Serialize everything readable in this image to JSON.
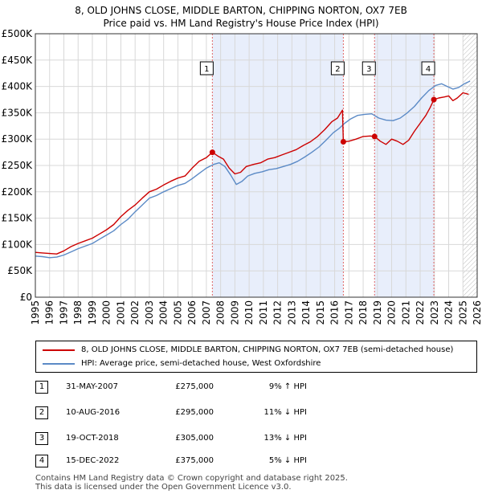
{
  "chart_data": {
    "type": "line",
    "title": "8, OLD JOHNS CLOSE, MIDDLE BARTON, CHIPPING NORTON, OX7 7EB",
    "subtitle": "Price paid vs. HM Land Registry's House Price Index (HPI)",
    "xlim": [
      1995,
      2026
    ],
    "ylim": [
      0,
      500000
    ],
    "x_ticks": [
      1995,
      1996,
      1997,
      1998,
      1999,
      2000,
      2001,
      2002,
      2003,
      2004,
      2005,
      2006,
      2007,
      2008,
      2009,
      2010,
      2011,
      2012,
      2013,
      2014,
      2015,
      2016,
      2017,
      2018,
      2019,
      2020,
      2021,
      2022,
      2023,
      2024,
      2025,
      2026
    ],
    "y_ticks": [
      0,
      50000,
      100000,
      150000,
      200000,
      250000,
      300000,
      350000,
      400000,
      450000,
      500000
    ],
    "y_tick_labels": [
      "£0",
      "£50K",
      "£100K",
      "£150K",
      "£200K",
      "£250K",
      "£300K",
      "£350K",
      "£400K",
      "£450K",
      "£500K"
    ],
    "grid": true,
    "forecast_start": 2025.0,
    "colors": {
      "property": "#cc0000",
      "hpi": "#5b8ac6",
      "shade": "#e8eefb",
      "marker_line": "#e06666"
    },
    "series": [
      {
        "name": "8, OLD JOHNS CLOSE, MIDDLE BARTON, CHIPPING NORTON, OX7 7EB (semi-detached house)",
        "x": [
          1995,
          1995.5,
          1996,
          1996.5,
          1997,
          1997.5,
          1998,
          1998.5,
          1999,
          1999.5,
          2000,
          2000.5,
          2001,
          2001.5,
          2002,
          2002.5,
          2003,
          2003.5,
          2004,
          2004.5,
          2005,
          2005.5,
          2006,
          2006.5,
          2007,
          2007.42,
          2007.8,
          2008.2,
          2008.6,
          2009,
          2009.4,
          2009.8,
          2010.3,
          2010.8,
          2011.3,
          2011.8,
          2012.3,
          2012.8,
          2013.3,
          2013.8,
          2014.3,
          2014.8,
          2015.3,
          2015.8,
          2016.2,
          2016.55,
          2016.61,
          2017,
          2017.5,
          2018,
          2018.5,
          2018.8,
          2019.2,
          2019.6,
          2020,
          2020.4,
          2020.8,
          2021.2,
          2021.6,
          2022,
          2022.4,
          2022.7,
          2022.96,
          2023.3,
          2023.7,
          2024,
          2024.3,
          2024.6,
          2025,
          2025.4
        ],
        "values": [
          85000,
          84000,
          83000,
          82000,
          88000,
          96000,
          102000,
          107000,
          112000,
          120000,
          128000,
          138000,
          153000,
          165000,
          175000,
          188000,
          200000,
          205000,
          213000,
          220000,
          226000,
          230000,
          245000,
          258000,
          265000,
          275000,
          268000,
          262000,
          245000,
          234000,
          237000,
          248000,
          252000,
          255000,
          262000,
          265000,
          270000,
          275000,
          280000,
          288000,
          295000,
          305000,
          318000,
          333000,
          340000,
          355000,
          295000,
          296000,
          300000,
          305000,
          306000,
          305000,
          296000,
          290000,
          300000,
          296000,
          290000,
          298000,
          315000,
          330000,
          345000,
          360000,
          375000,
          378000,
          380000,
          382000,
          373000,
          378000,
          388000,
          385000
        ]
      },
      {
        "name": "HPI: Average price, semi-detached house, West Oxfordshire",
        "x": [
          1995,
          1995.5,
          1996,
          1996.5,
          1997,
          1997.5,
          1998,
          1998.5,
          1999,
          1999.5,
          2000,
          2000.5,
          2001,
          2001.5,
          2002,
          2002.5,
          2003,
          2003.5,
          2004,
          2004.5,
          2005,
          2005.5,
          2006,
          2006.5,
          2007,
          2007.5,
          2007.9,
          2008.3,
          2008.7,
          2009.1,
          2009.5,
          2009.9,
          2010.4,
          2010.9,
          2011.4,
          2011.9,
          2012.4,
          2012.9,
          2013.4,
          2013.9,
          2014.4,
          2014.9,
          2015.4,
          2015.9,
          2016.3,
          2016.7,
          2017.1,
          2017.6,
          2018.1,
          2018.6,
          2019.1,
          2019.6,
          2020.1,
          2020.6,
          2021.1,
          2021.6,
          2022.1,
          2022.6,
          2023.1,
          2023.5,
          2023.9,
          2024.3,
          2024.7,
          2025.1,
          2025.5
        ],
        "values": [
          78000,
          77000,
          75000,
          76000,
          80000,
          86000,
          92000,
          97000,
          102000,
          110000,
          118000,
          126000,
          138000,
          148000,
          162000,
          175000,
          188000,
          193000,
          200000,
          206000,
          212000,
          216000,
          225000,
          235000,
          245000,
          252000,
          255000,
          248000,
          232000,
          214000,
          220000,
          230000,
          235000,
          238000,
          242000,
          244000,
          248000,
          252000,
          258000,
          266000,
          275000,
          285000,
          298000,
          312000,
          320000,
          330000,
          338000,
          345000,
          347000,
          348000,
          340000,
          336000,
          335000,
          340000,
          350000,
          362000,
          378000,
          392000,
          402000,
          405000,
          400000,
          395000,
          398000,
          405000,
          410000
        ]
      }
    ],
    "annotations": [
      {
        "label": "1",
        "x": 2007.42,
        "y": 275000
      },
      {
        "label": "2",
        "x": 2016.61,
        "y": 295000
      },
      {
        "label": "3",
        "x": 2018.8,
        "y": 305000
      },
      {
        "label": "4",
        "x": 2022.96,
        "y": 375000
      }
    ]
  },
  "legend": {
    "property_label": "8, OLD JOHNS CLOSE, MIDDLE BARTON, CHIPPING NORTON, OX7 7EB (semi-detached house)",
    "hpi_label": "HPI: Average price, semi-detached house, West Oxfordshire"
  },
  "transactions": [
    {
      "num": "1",
      "date": "31-MAY-2007",
      "price": "£275,000",
      "hpi": "9% ↑ HPI"
    },
    {
      "num": "2",
      "date": "10-AUG-2016",
      "price": "£295,000",
      "hpi": "11% ↓ HPI"
    },
    {
      "num": "3",
      "date": "19-OCT-2018",
      "price": "£305,000",
      "hpi": "13% ↓ HPI"
    },
    {
      "num": "4",
      "date": "15-DEC-2022",
      "price": "£375,000",
      "hpi": "5% ↓ HPI"
    }
  ],
  "footer": {
    "line1": "Contains HM Land Registry data © Crown copyright and database right 2025.",
    "line2": "This data is licensed under the Open Government Licence v3.0."
  }
}
